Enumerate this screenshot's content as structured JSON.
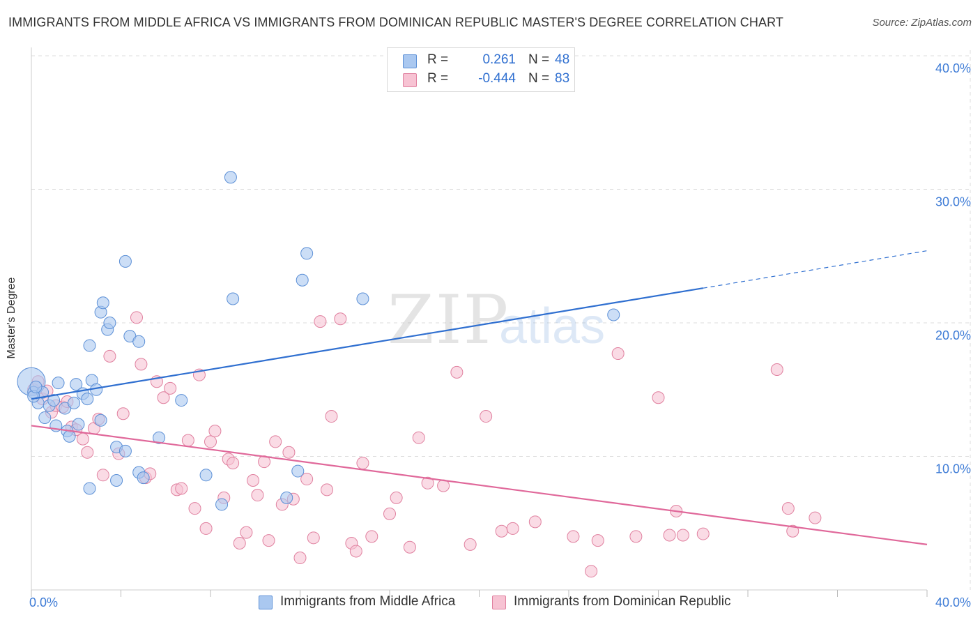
{
  "title": "IMMIGRANTS FROM MIDDLE AFRICA VS IMMIGRANTS FROM DOMINICAN REPUBLIC MASTER'S DEGREE CORRELATION CHART",
  "source": "Source: ZipAtlas.com",
  "watermark": {
    "zip": "ZIP",
    "atlas": "atlas"
  },
  "legend_top": [
    {
      "r_label": "R =",
      "r_value": "0.261",
      "n_label": "N =",
      "n_value": "48"
    },
    {
      "r_label": "R =",
      "r_value": "-0.444",
      "n_label": "N =",
      "n_value": "83"
    }
  ],
  "legend_bottom": [
    "Immigrants from Middle Africa",
    "Immigrants from Dominican Republic"
  ],
  "colors": {
    "blue_fill": "#aac8f0",
    "blue_stroke": "#5b8fd6",
    "blue_line": "#2f6fd0",
    "pink_fill": "#f7c3d3",
    "pink_stroke": "#e0809f",
    "pink_line": "#e0689a",
    "tick_label": "#3d7bd6",
    "grid": "#dddddd"
  },
  "chart_data": {
    "type": "scatter",
    "title": "IMMIGRANTS FROM MIDDLE AFRICA VS IMMIGRANTS FROM DOMINICAN REPUBLIC MASTER'S DEGREE CORRELATION CHART",
    "xlabel": "",
    "ylabel": "Master's Degree",
    "xlim": [
      0,
      40
    ],
    "ylim": [
      0,
      40
    ],
    "x_ticks": [
      "0.0%",
      "40.0%"
    ],
    "y_ticks": [
      "10.0%",
      "20.0%",
      "30.0%",
      "40.0%"
    ],
    "grid": true,
    "legend_position": "top-center",
    "series": [
      {
        "name": "Immigrants from Middle Africa",
        "color": "#aac8f0",
        "r": 0.261,
        "n": 48,
        "trend": {
          "x": [
            0,
            30
          ],
          "y": [
            14.3,
            22.6
          ],
          "dashed_extension": {
            "x": [
              30,
              40
            ],
            "y": [
              22.6,
              25.4
            ]
          }
        },
        "points": [
          [
            0,
            15.6
          ],
          [
            0.1,
            14.8
          ],
          [
            0.3,
            14.0
          ],
          [
            0.5,
            14.8
          ],
          [
            0.6,
            12.9
          ],
          [
            0.8,
            13.8
          ],
          [
            1.0,
            14.2
          ],
          [
            1.2,
            15.5
          ],
          [
            1.1,
            12.3
          ],
          [
            1.5,
            13.6
          ],
          [
            1.6,
            11.9
          ],
          [
            1.7,
            11.5
          ],
          [
            1.9,
            14.0
          ],
          [
            2.0,
            15.4
          ],
          [
            2.1,
            12.4
          ],
          [
            2.3,
            14.7
          ],
          [
            2.5,
            14.3
          ],
          [
            2.7,
            15.7
          ],
          [
            2.9,
            15.0
          ],
          [
            3.1,
            12.7
          ],
          [
            3.1,
            20.8
          ],
          [
            3.2,
            21.5
          ],
          [
            3.4,
            19.5
          ],
          [
            3.5,
            20.0
          ],
          [
            2.6,
            18.3
          ],
          [
            3.8,
            10.7
          ],
          [
            4.2,
            10.4
          ],
          [
            3.8,
            8.2
          ],
          [
            4.2,
            24.6
          ],
          [
            4.4,
            19.0
          ],
          [
            4.8,
            18.6
          ],
          [
            4.8,
            8.8
          ],
          [
            5.0,
            8.4
          ],
          [
            2.6,
            7.6
          ],
          [
            5.7,
            11.4
          ],
          [
            6.7,
            14.2
          ],
          [
            7.8,
            8.6
          ],
          [
            8.5,
            6.4
          ],
          [
            9.0,
            21.8
          ],
          [
            8.9,
            30.9
          ],
          [
            11.4,
            6.9
          ],
          [
            11.9,
            8.9
          ],
          [
            12.1,
            23.2
          ],
          [
            12.3,
            25.2
          ],
          [
            14.8,
            21.8
          ],
          [
            26.0,
            20.6
          ],
          [
            0.1,
            14.5
          ],
          [
            0.2,
            15.2
          ]
        ]
      },
      {
        "name": "Immigrants from Dominican Republic",
        "color": "#f7c3d3",
        "r": -0.444,
        "n": 83,
        "trend": {
          "x": [
            0,
            40
          ],
          "y": [
            12.3,
            3.4
          ]
        },
        "points": [
          [
            0.1,
            15.0
          ],
          [
            0.3,
            15.6
          ],
          [
            0.5,
            14.3
          ],
          [
            0.7,
            14.9
          ],
          [
            0.9,
            13.3
          ],
          [
            1.1,
            13.8
          ],
          [
            1.4,
            13.7
          ],
          [
            1.6,
            14.1
          ],
          [
            1.8,
            12.2
          ],
          [
            2.0,
            12.0
          ],
          [
            2.3,
            11.3
          ],
          [
            2.5,
            10.3
          ],
          [
            2.8,
            12.1
          ],
          [
            3.0,
            12.8
          ],
          [
            3.2,
            8.6
          ],
          [
            3.5,
            17.5
          ],
          [
            3.9,
            10.2
          ],
          [
            4.1,
            13.2
          ],
          [
            4.7,
            20.4
          ],
          [
            4.9,
            16.9
          ],
          [
            5.1,
            8.4
          ],
          [
            5.3,
            8.7
          ],
          [
            5.6,
            15.6
          ],
          [
            5.9,
            14.4
          ],
          [
            6.2,
            15.1
          ],
          [
            6.5,
            7.5
          ],
          [
            6.7,
            7.6
          ],
          [
            7.0,
            11.2
          ],
          [
            7.3,
            6.1
          ],
          [
            7.5,
            16.1
          ],
          [
            7.8,
            4.6
          ],
          [
            8.0,
            11.1
          ],
          [
            8.2,
            11.9
          ],
          [
            8.6,
            6.9
          ],
          [
            8.8,
            9.8
          ],
          [
            9.0,
            9.5
          ],
          [
            9.3,
            3.5
          ],
          [
            9.6,
            4.3
          ],
          [
            9.9,
            8.2
          ],
          [
            10.1,
            7.1
          ],
          [
            10.4,
            9.6
          ],
          [
            10.6,
            3.7
          ],
          [
            10.9,
            11.1
          ],
          [
            11.2,
            6.4
          ],
          [
            11.5,
            10.3
          ],
          [
            11.7,
            6.8
          ],
          [
            12.0,
            2.4
          ],
          [
            12.3,
            8.3
          ],
          [
            12.6,
            3.9
          ],
          [
            12.9,
            20.1
          ],
          [
            13.2,
            7.5
          ],
          [
            13.4,
            13.0
          ],
          [
            13.8,
            20.3
          ],
          [
            14.3,
            3.5
          ],
          [
            14.5,
            2.9
          ],
          [
            14.8,
            9.5
          ],
          [
            15.2,
            4.0
          ],
          [
            16.0,
            5.7
          ],
          [
            16.3,
            6.9
          ],
          [
            16.9,
            3.2
          ],
          [
            17.3,
            11.4
          ],
          [
            17.7,
            8.0
          ],
          [
            18.4,
            7.8
          ],
          [
            19.0,
            16.3
          ],
          [
            19.6,
            3.4
          ],
          [
            20.3,
            13.0
          ],
          [
            21.0,
            4.4
          ],
          [
            21.5,
            4.6
          ],
          [
            22.5,
            5.1
          ],
          [
            24.2,
            4.0
          ],
          [
            25.0,
            1.4
          ],
          [
            25.3,
            3.7
          ],
          [
            26.2,
            17.7
          ],
          [
            27.0,
            4.0
          ],
          [
            28.0,
            14.4
          ],
          [
            28.5,
            4.1
          ],
          [
            28.8,
            5.9
          ],
          [
            29.1,
            4.1
          ],
          [
            30.0,
            4.2
          ],
          [
            33.3,
            16.5
          ],
          [
            33.8,
            6.1
          ],
          [
            34.0,
            4.4
          ],
          [
            35.0,
            5.4
          ]
        ]
      }
    ]
  }
}
